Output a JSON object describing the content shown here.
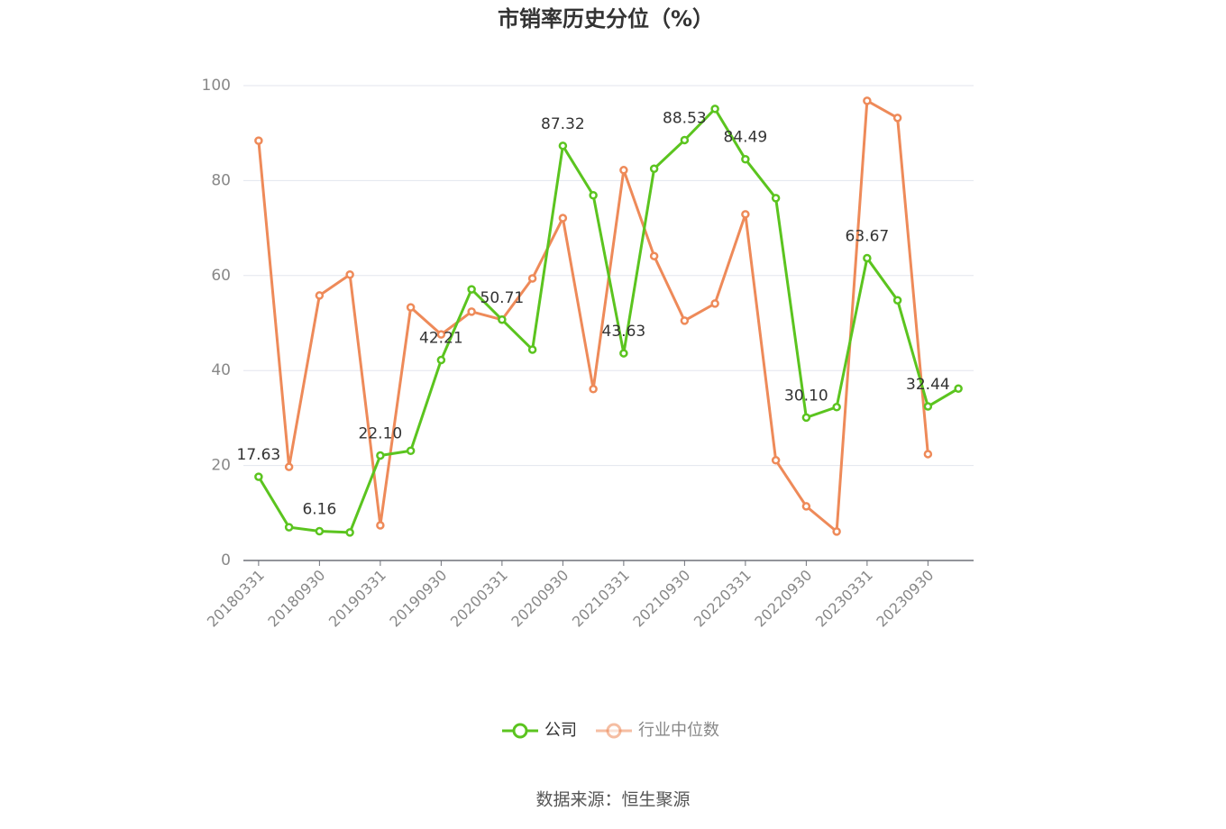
{
  "chart_data": {
    "type": "line",
    "title": "市销率历史分位（%）",
    "source": "数据来源：恒生聚源",
    "categories": [
      "20180331",
      null,
      "20180930",
      null,
      "20190331",
      null,
      "20190930",
      null,
      "20200331",
      null,
      "20200930",
      null,
      "20210331",
      null,
      "20210930",
      null,
      "20220331",
      null,
      "20220930",
      null,
      "20230331",
      null,
      "20230930",
      null
    ],
    "series": [
      {
        "name": "公司",
        "color": "#5bc41f",
        "values": [
          17.63,
          7.0,
          6.16,
          5.9,
          22.1,
          23.1,
          42.21,
          57.1,
          50.71,
          44.4,
          87.32,
          76.9,
          43.63,
          82.5,
          88.53,
          95.1,
          84.49,
          76.3,
          30.1,
          32.3,
          63.67,
          54.8,
          32.44,
          36.2
        ],
        "value_labels": [
          "17.63",
          null,
          "6.16",
          null,
          "22.10",
          null,
          "42.21",
          null,
          "50.71",
          null,
          "87.32",
          null,
          "43.63",
          null,
          "88.53",
          null,
          "84.49",
          null,
          "30.10",
          null,
          "63.67",
          null,
          "32.44",
          null
        ]
      },
      {
        "name": "行业中位数",
        "color": "#ee8a59",
        "values": [
          88.4,
          19.7,
          55.8,
          60.2,
          7.4,
          53.3,
          47.6,
          52.4,
          50.7,
          59.4,
          72.1,
          36.1,
          82.2,
          64.1,
          50.5,
          54.1,
          72.9,
          21.1,
          11.4,
          6.1,
          96.8,
          93.2,
          22.4,
          null
        ]
      }
    ],
    "ylim": [
      0,
      100
    ],
    "yticks": [
      0,
      20,
      40,
      60,
      80,
      100
    ],
    "grid": true
  }
}
